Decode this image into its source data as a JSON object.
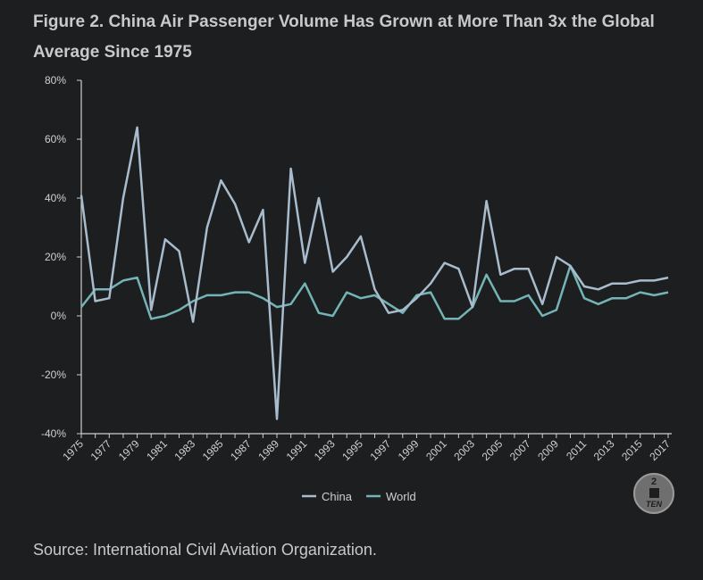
{
  "title": "Figure 2. China Air Passenger Volume Has Grown at More Than 3x the Global Average Since 1975",
  "source": "Source: International Civil Aviation Organization.",
  "logo": {
    "top": "2",
    "bottom": "TEN"
  },
  "colors": {
    "china": "#a8bccd",
    "world": "#74b4b6",
    "axis": "#cfcfcf",
    "background": "#1d1e20"
  },
  "chart_data": {
    "type": "line",
    "title": "Figure 2. China Air Passenger Volume Has Grown at More Than 3x the Global Average Since 1975",
    "xlabel": "",
    "ylabel": "",
    "ylim": [
      -40,
      80
    ],
    "yticks": [
      -40,
      -20,
      0,
      20,
      40,
      60,
      80
    ],
    "ytick_labels": [
      "-40%",
      "-20%",
      "0%",
      "20%",
      "40%",
      "60%",
      "80%"
    ],
    "x": [
      1975,
      1976,
      1977,
      1978,
      1979,
      1980,
      1981,
      1982,
      1983,
      1984,
      1985,
      1986,
      1987,
      1988,
      1989,
      1990,
      1991,
      1992,
      1993,
      1994,
      1995,
      1996,
      1997,
      1998,
      1999,
      2000,
      2001,
      2002,
      2003,
      2004,
      2005,
      2006,
      2007,
      2008,
      2009,
      2010,
      2011,
      2012,
      2013,
      2014,
      2015,
      2016,
      2017
    ],
    "xtick_labels": [
      "1975",
      "1977",
      "1979",
      "1981",
      "1983",
      "1985",
      "1987",
      "1989",
      "1991",
      "1993",
      "1995",
      "1997",
      "1999",
      "2001",
      "2003",
      "2005",
      "2007",
      "2009",
      "2011",
      "2013",
      "2015",
      "2017"
    ],
    "legend": "bottom-center",
    "series": [
      {
        "name": "China",
        "values": [
          41,
          5,
          6,
          40,
          64,
          2,
          26,
          22,
          -2,
          30,
          46,
          38,
          25,
          36,
          -35,
          50,
          18,
          40,
          15,
          20,
          27,
          9,
          1,
          2,
          6,
          11,
          18,
          16,
          3,
          39,
          14,
          16,
          16,
          4,
          20,
          17,
          10,
          9,
          11,
          11,
          12,
          12,
          13
        ]
      },
      {
        "name": "World",
        "values": [
          3,
          9,
          9,
          12,
          13,
          -1,
          0,
          2,
          5,
          7,
          7,
          8,
          8,
          6,
          3,
          4,
          11,
          1,
          0,
          8,
          6,
          7,
          4,
          1,
          7,
          8,
          -1,
          -1,
          3,
          14,
          5,
          5,
          7,
          0,
          2,
          17,
          6,
          4,
          6,
          6,
          8,
          7,
          8
        ]
      }
    ]
  }
}
